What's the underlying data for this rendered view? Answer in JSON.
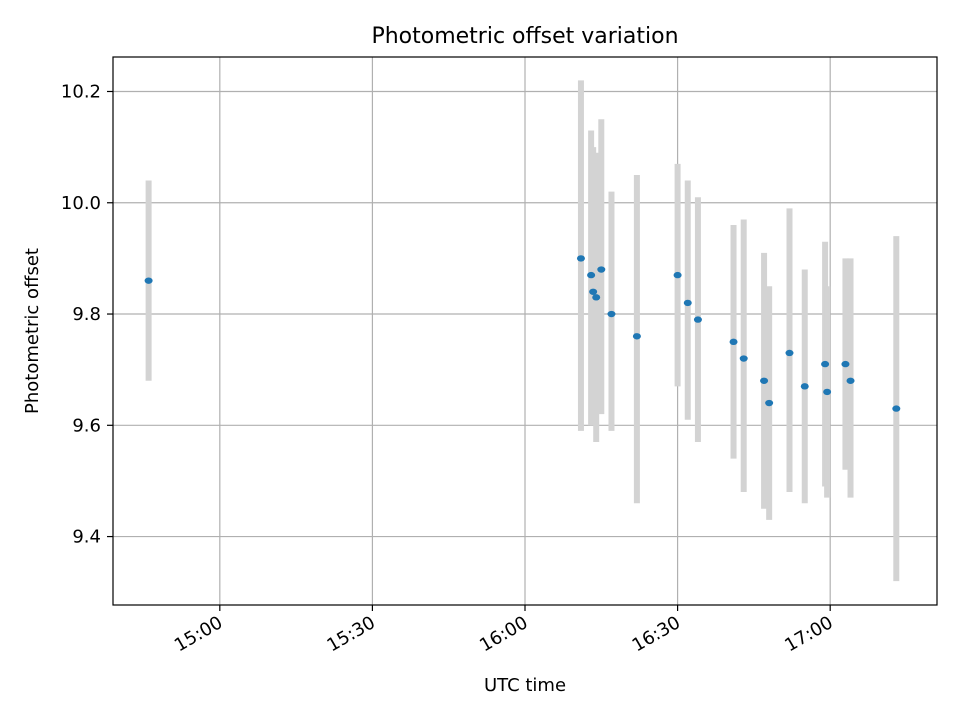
{
  "chart_data": {
    "type": "scatter",
    "title": "Photometric offset variation",
    "xlabel": "UTC time",
    "ylabel": "Photometric offset",
    "x_ticks": [
      "15:00",
      "15:30",
      "16:00",
      "16:30",
      "17:00"
    ],
    "y_ticks": [
      "9.4",
      "9.6",
      "9.8",
      "10.0",
      "10.2"
    ],
    "xlim": [
      "14:39",
      "17:21"
    ],
    "ylim": [
      9.277,
      10.262
    ],
    "grid": true,
    "colors": {
      "point": "#1f77b4",
      "errorbar": "#d3d3d3",
      "grid": "#b0b0b0"
    },
    "points": [
      {
        "x": "14:46",
        "y": 9.86,
        "ylo": 9.68,
        "yhi": 10.04
      },
      {
        "x": "16:11",
        "y": 9.9,
        "ylo": 9.59,
        "yhi": 10.22
      },
      {
        "x": "16:13",
        "y": 9.87,
        "ylo": 9.6,
        "yhi": 10.13
      },
      {
        "x": "16:13.4",
        "y": 9.84,
        "ylo": 9.6,
        "yhi": 10.1
      },
      {
        "x": "16:14",
        "y": 9.83,
        "ylo": 9.57,
        "yhi": 10.09
      },
      {
        "x": "16:15",
        "y": 9.88,
        "ylo": 9.62,
        "yhi": 10.15
      },
      {
        "x": "16:17",
        "y": 9.8,
        "ylo": 9.59,
        "yhi": 10.02
      },
      {
        "x": "16:22",
        "y": 9.76,
        "ylo": 9.46,
        "yhi": 10.05
      },
      {
        "x": "16:30",
        "y": 9.87,
        "ylo": 9.67,
        "yhi": 10.07
      },
      {
        "x": "16:32",
        "y": 9.82,
        "ylo": 9.61,
        "yhi": 10.04
      },
      {
        "x": "16:34",
        "y": 9.79,
        "ylo": 9.57,
        "yhi": 10.01
      },
      {
        "x": "16:41",
        "y": 9.75,
        "ylo": 9.54,
        "yhi": 9.96
      },
      {
        "x": "16:43",
        "y": 9.72,
        "ylo": 9.48,
        "yhi": 9.97
      },
      {
        "x": "16:47",
        "y": 9.68,
        "ylo": 9.45,
        "yhi": 9.91
      },
      {
        "x": "16:48",
        "y": 9.64,
        "ylo": 9.43,
        "yhi": 9.85
      },
      {
        "x": "16:52",
        "y": 9.73,
        "ylo": 9.48,
        "yhi": 9.99
      },
      {
        "x": "16:55",
        "y": 9.67,
        "ylo": 9.46,
        "yhi": 9.88
      },
      {
        "x": "16:59",
        "y": 9.71,
        "ylo": 9.49,
        "yhi": 9.93
      },
      {
        "x": "16:59.4",
        "y": 9.66,
        "ylo": 9.47,
        "yhi": 9.85
      },
      {
        "x": "17:03",
        "y": 9.71,
        "ylo": 9.52,
        "yhi": 9.9
      },
      {
        "x": "17:04",
        "y": 9.68,
        "ylo": 9.47,
        "yhi": 9.9
      },
      {
        "x": "17:13",
        "y": 9.63,
        "ylo": 9.32,
        "yhi": 9.94
      }
    ]
  }
}
